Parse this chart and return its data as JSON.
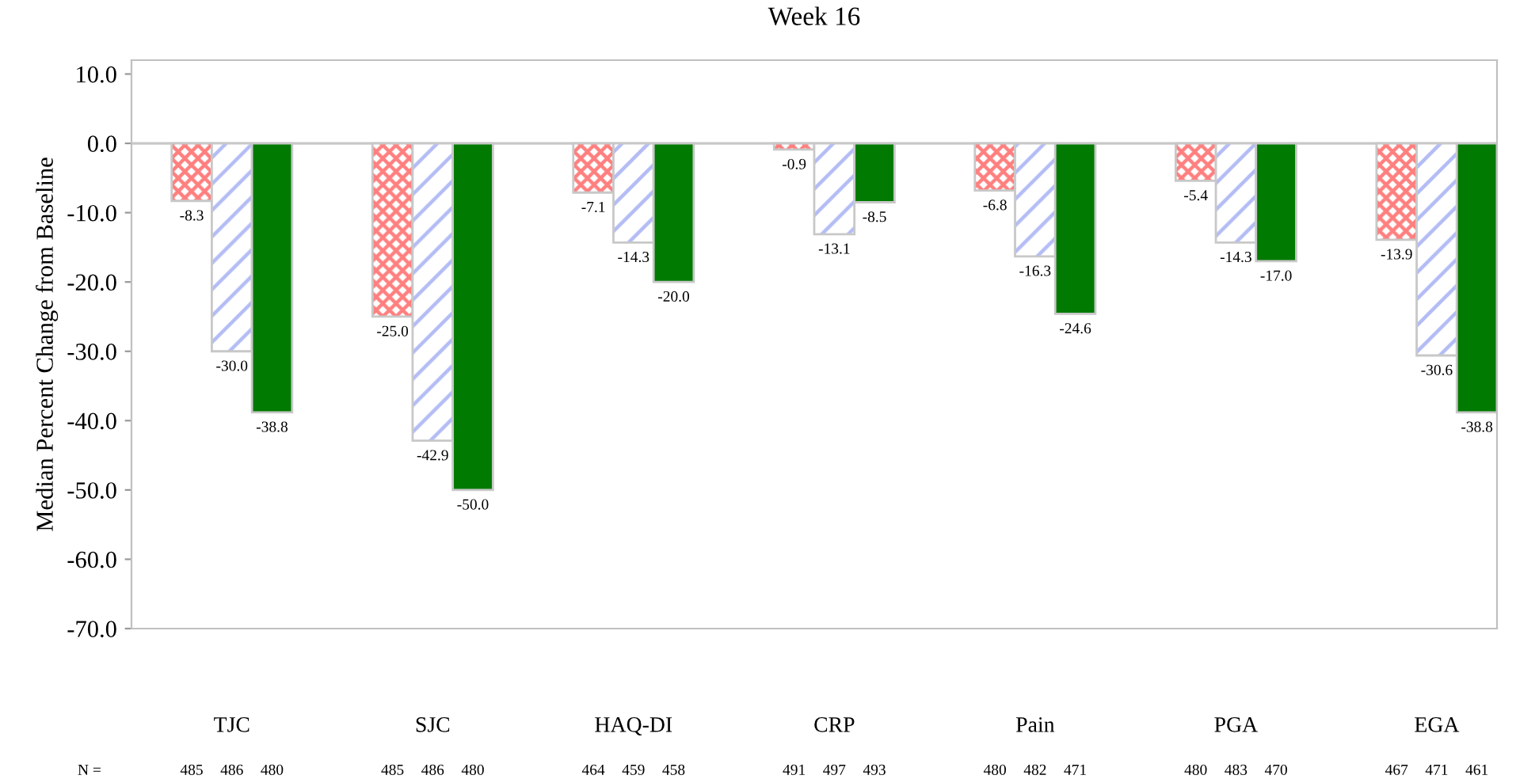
{
  "chart_data": {
    "type": "bar",
    "title": "Week 16",
    "ylabel": "Median Percent Change from Baseline",
    "categories": [
      "TJC",
      "SJC",
      "HAQ-DI",
      "CRP",
      "Pain",
      "PGA",
      "EGA"
    ],
    "series": [
      {
        "color": "#ff7f7f",
        "values": [
          -8.3,
          -25.0,
          -7.1,
          -0.9,
          -6.8,
          -5.4,
          -13.9
        ],
        "value_labels": [
          "-8.3",
          "-25.0",
          "-7.1",
          "-0.9",
          "-6.8",
          "-5.4",
          "-13.9"
        ]
      },
      {
        "color": "#b3bcf5",
        "values": [
          -30.0,
          -42.9,
          -14.3,
          -13.1,
          -16.3,
          -14.3,
          -30.6
        ],
        "value_labels": [
          "-30.0",
          "-42.9",
          "-14.3",
          "-13.1",
          "-16.3",
          "-14.3",
          "-30.6"
        ]
      },
      {
        "color": "#007a00",
        "values": [
          -38.8,
          -50.0,
          -20.0,
          -8.5,
          -24.6,
          -17.0,
          -38.8
        ],
        "value_labels": [
          "-38.8",
          "-50.0",
          "-20.0",
          "-8.5",
          "-24.6",
          "-17.0",
          "-38.8"
        ]
      }
    ],
    "ylim": [
      -70,
      12
    ],
    "yticks": [
      {
        "value": 10,
        "label": "10.0"
      },
      {
        "value": 0,
        "label": "0.0"
      },
      {
        "value": -10,
        "label": "-10.0"
      },
      {
        "value": -20,
        "label": "-20.0"
      },
      {
        "value": -30,
        "label": "-30.0"
      },
      {
        "value": -40,
        "label": "-40.0"
      },
      {
        "value": -50,
        "label": "-50.0"
      },
      {
        "value": -60,
        "label": "-60.0"
      },
      {
        "value": -70,
        "label": "-70.0"
      }
    ],
    "ref_lines": [
      {
        "axis": "y",
        "value": 0,
        "label": null,
        "color": "#c8c8c8"
      }
    ],
    "grid": false,
    "legend": false,
    "annotations": [
      "N =",
      "485",
      "486",
      "480",
      "485",
      "486",
      "480",
      "464",
      "459",
      "458",
      "491",
      "497",
      "493",
      "480",
      "482",
      "471",
      "480",
      "483",
      "470",
      "467",
      "471",
      "461"
    ]
  }
}
